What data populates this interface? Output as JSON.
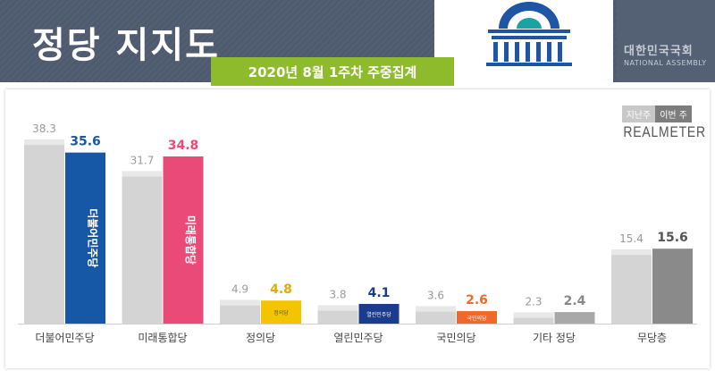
{
  "header": {
    "title": "정당 지지도",
    "subtitle": "2020년 8월 1주차 주중집계",
    "assembly_ko": "대한민국국회",
    "assembly_en": "NATIONAL ASSEMBLY"
  },
  "legend": {
    "prev": "지난주",
    "cur": "이번 주"
  },
  "brand": "REALMETER",
  "colors": {
    "header_bg": "#4e5a6e",
    "subtitle_bg": "#8dbb2b",
    "prev_bar": "#d4d4d4",
    "logo_blue": "#1f55a5",
    "logo_teal": "#1aa3a0"
  },
  "chart_data": {
    "type": "bar",
    "title": "정당 지지도",
    "categories": [
      "더불어민주당",
      "미래통합당",
      "정의당",
      "열린민주당",
      "국민의당",
      "기타 정당",
      "무당층"
    ],
    "series": [
      {
        "name": "지난주",
        "values": [
          38.3,
          31.7,
          4.9,
          3.8,
          3.6,
          2.3,
          15.4
        ]
      },
      {
        "name": "이번 주",
        "values": [
          35.6,
          34.8,
          4.8,
          4.1,
          2.6,
          2.4,
          15.6
        ]
      }
    ],
    "current_colors": [
      "#1657a6",
      "#ea4a78",
      "#f5c400",
      "#1b3c8c",
      "#ef6a2a",
      "#a8a8a8",
      "#8a8a8a"
    ],
    "current_label_colors": [
      "#1657a6",
      "#ea4a78",
      "#eaa800",
      "#1b3c8c",
      "#ef6a2a",
      "#888888",
      "#555555"
    ],
    "bar_tags": [
      "더불어민주당",
      "미래통합당",
      "정의당",
      "열린민주당",
      "국민의당",
      "",
      ""
    ],
    "ylim": [
      0,
      40
    ],
    "grid": false,
    "legend_position": "top-right"
  }
}
